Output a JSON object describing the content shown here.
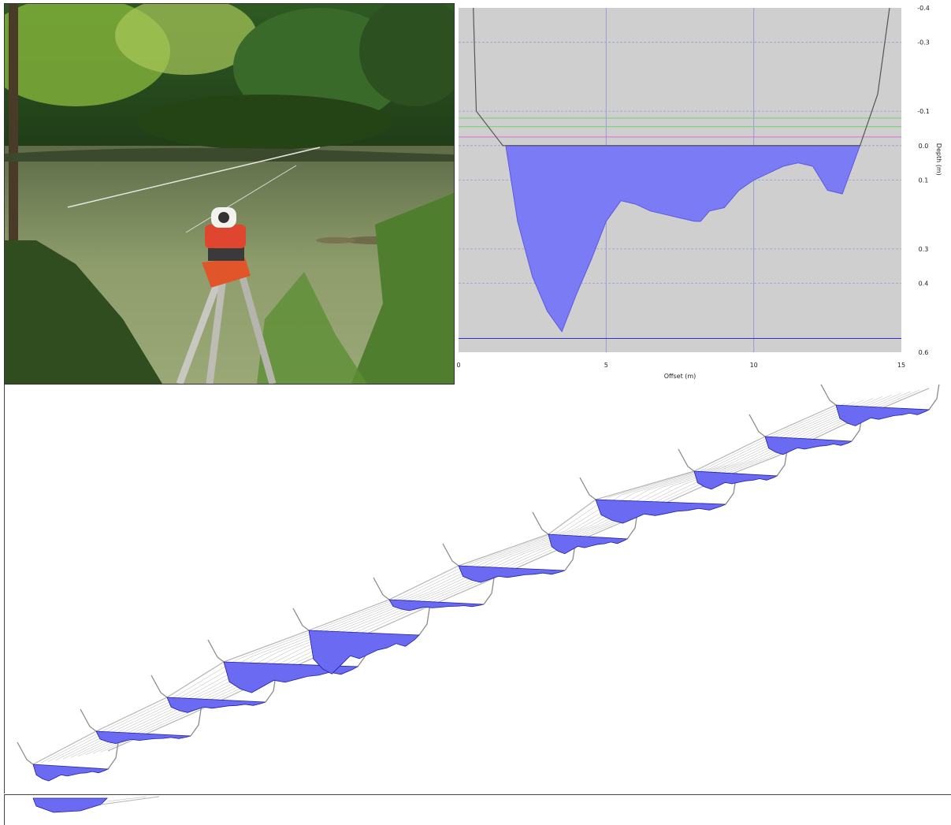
{
  "photo": {
    "description": "",
    "colors": {
      "water": "#8a9a66",
      "foliage": "#3f6b2a",
      "tripod": "#e0562a"
    }
  },
  "chart_data": [
    {
      "type": "area",
      "title": "",
      "xlabel": "Offset (m)",
      "ylabel": "Depth (m)",
      "xlim": [
        0,
        15
      ],
      "ylim": [
        0.6,
        -0.4
      ],
      "x_ticks": [
        "0",
        "5",
        "10",
        "15"
      ],
      "y_ticks": [
        "-0.4",
        "-0.3",
        "-0.1",
        "0.0",
        "0.1",
        "0.3",
        "0.4",
        "0.6"
      ],
      "grid": true,
      "water_surface_depth": 0.0,
      "reference_lines": [
        {
          "depth": -0.08,
          "color": "#6dd46d"
        },
        {
          "depth": -0.055,
          "color": "#6dd46d"
        },
        {
          "depth": -0.025,
          "color": "#e06ad8"
        },
        {
          "depth": 0.56,
          "color": "#3030d0"
        }
      ],
      "bank_profile": {
        "x": [
          0.5,
          0.6,
          1.5,
          1.6,
          13.6,
          14.2,
          14.6
        ],
        "y": [
          -0.4,
          -0.1,
          0.0,
          0.0,
          0.0,
          -0.15,
          -0.4
        ]
      },
      "series": [
        {
          "x": [
            1.6,
            2.0,
            2.5,
            3.0,
            3.5,
            4.0,
            4.5,
            5.0,
            5.5,
            6.0,
            6.5,
            7.0,
            7.5,
            8.0,
            8.2,
            8.5,
            9.0,
            9.5,
            10.0,
            10.5,
            11.0,
            11.5,
            12.0,
            12.5,
            13.0,
            13.6
          ],
          "y": [
            0.0,
            0.22,
            0.38,
            0.48,
            0.54,
            0.43,
            0.33,
            0.22,
            0.16,
            0.17,
            0.19,
            0.2,
            0.21,
            0.22,
            0.22,
            0.19,
            0.18,
            0.13,
            0.1,
            0.08,
            0.06,
            0.05,
            0.06,
            0.13,
            0.14,
            0.0
          ],
          "color": "#7b7bf5"
        }
      ]
    },
    {
      "type": "area",
      "title": "",
      "view": "3d-oblique",
      "cross_section_count": 12,
      "colors": {
        "water_fill": "#6a6af2",
        "water_edge": "#2020a0",
        "bank": "#8c8c8c",
        "link": "#b5b5b5"
      }
    }
  ]
}
